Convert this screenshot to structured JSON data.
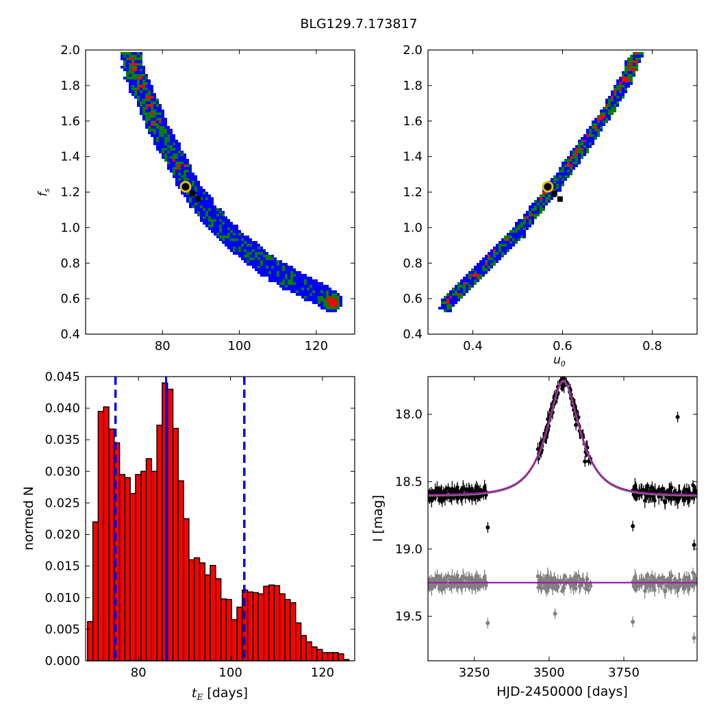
{
  "figure": {
    "title": "BLG129.7.173817"
  },
  "panels": {
    "fs_vs_tE": {
      "ylabel": "f",
      "ylabel_sub": "s",
      "xlim": [
        60,
        130
      ],
      "ylim": [
        0.4,
        2.0
      ],
      "xticks": [
        "80",
        "100",
        "120"
      ],
      "xtick_values": [
        80,
        100,
        120
      ],
      "yticks": [
        "0.4",
        "0.6",
        "0.8",
        "1.0",
        "1.2",
        "1.4",
        "1.6",
        "1.8",
        "2.0"
      ],
      "ytick_values": [
        0.4,
        0.6,
        0.8,
        1.0,
        1.2,
        1.4,
        1.6,
        1.8,
        2.0
      ],
      "band_center": [
        [
          71,
          2.0
        ],
        [
          73,
          1.85
        ],
        [
          76,
          1.7
        ],
        [
          79,
          1.55
        ],
        [
          82,
          1.43
        ],
        [
          85,
          1.31
        ],
        [
          88,
          1.2
        ],
        [
          91,
          1.11
        ],
        [
          95,
          1.01
        ],
        [
          100,
          0.91
        ],
        [
          105,
          0.82
        ],
        [
          110,
          0.75
        ],
        [
          115,
          0.69
        ],
        [
          120,
          0.64
        ],
        [
          124,
          0.59
        ]
      ],
      "best_fit": [
        86,
        1.23
      ]
    },
    "fs_vs_u0": {
      "xlabel": "u",
      "xlabel_sub": "0",
      "xlim": [
        0.3,
        0.9
      ],
      "ylim": [
        0.4,
        2.0
      ],
      "xticks": [
        "0.4",
        "0.6",
        "0.8"
      ],
      "xtick_values": [
        0.4,
        0.6,
        0.8
      ],
      "yticks": [
        "0.4",
        "0.6",
        "0.8",
        "1.0",
        "1.2",
        "1.4",
        "1.6",
        "1.8",
        "2.0"
      ],
      "ytick_values": [
        0.4,
        0.6,
        0.8,
        1.0,
        1.2,
        1.4,
        1.6,
        1.8,
        2.0
      ],
      "band_center": [
        [
          0.335,
          0.57
        ],
        [
          0.4,
          0.73
        ],
        [
          0.45,
          0.86
        ],
        [
          0.5,
          0.99
        ],
        [
          0.55,
          1.15
        ],
        [
          0.6,
          1.31
        ],
        [
          0.65,
          1.49
        ],
        [
          0.7,
          1.67
        ],
        [
          0.735,
          1.82
        ],
        [
          0.765,
          2.0
        ]
      ],
      "best_fit": [
        0.567,
        1.23
      ]
    },
    "histogram": {
      "ylabel": "normed N",
      "xlabel": "t",
      "xlabel_sub": "E",
      "xlabel_suffix": " [days]",
      "xlim": [
        68.5,
        127
      ],
      "ylim": [
        0,
        0.045
      ],
      "xticks": [
        "80",
        "100",
        "120"
      ],
      "xtick_values": [
        80,
        100,
        120
      ],
      "yticks": [
        "0.000",
        "0.005",
        "0.010",
        "0.015",
        "0.020",
        "0.025",
        "0.030",
        "0.035",
        "0.040",
        "0.045"
      ],
      "ytick_values": [
        0,
        0.005,
        0.01,
        0.015,
        0.02,
        0.025,
        0.03,
        0.035,
        0.04,
        0.045
      ],
      "median": 86,
      "bounds": [
        75,
        103
      ]
    },
    "lightcurve": {
      "ylabel": "I [mag]",
      "xlabel": "HJD-2450000 [days]",
      "xlim": [
        3095,
        3995
      ],
      "ylim": [
        19.83,
        17.72
      ],
      "xticks": [
        "3250",
        "3500",
        "3750"
      ],
      "xtick_values": [
        3250,
        3500,
        3750
      ],
      "yticks": [
        "18.0",
        "18.5",
        "19.0",
        "19.5"
      ],
      "ytick_values": [
        18.0,
        18.5,
        19.0,
        19.5
      ],
      "model": {
        "t0": 3548,
        "tE": 86,
        "u0": 0.567,
        "fs": 1.23,
        "baseline_mag": 18.6
      },
      "residual_offset": 19.25,
      "segments": [
        [
          3095,
          3295
        ],
        [
          3460,
          3640
        ],
        [
          3780,
          3995
        ]
      ]
    }
  },
  "chart_data": [
    {
      "type": "heatmap",
      "xlabel": "",
      "ylabel": "f_s",
      "xlim": [
        60,
        130
      ],
      "ylim": [
        0.4,
        2.0
      ],
      "series": [
        {
          "name": "",
          "values": [
            [
              71,
              2.0
            ],
            [
              76,
              1.7
            ],
            [
              82,
              1.43
            ],
            [
              88,
              1.2
            ],
            [
              95,
              1.01
            ],
            [
              105,
              0.82
            ],
            [
              115,
              0.69
            ],
            [
              124,
              0.59
            ]
          ]
        }
      ],
      "best_fit": [
        86,
        1.23
      ]
    },
    {
      "type": "heatmap",
      "xlabel": "u_0",
      "ylabel": "",
      "xlim": [
        0.3,
        0.9
      ],
      "ylim": [
        0.4,
        2.0
      ],
      "series": [
        {
          "name": "",
          "values": [
            [
              0.335,
              0.57
            ],
            [
              0.45,
              0.86
            ],
            [
              0.55,
              1.15
            ],
            [
              0.65,
              1.49
            ],
            [
              0.765,
              2.0
            ]
          ]
        }
      ],
      "best_fit": [
        0.567,
        1.23
      ]
    },
    {
      "type": "bar",
      "xlabel": "t_E [days]",
      "ylabel": "normed N",
      "xlim": [
        68.5,
        127
      ],
      "ylim": [
        0,
        0.045
      ],
      "bin_width": 1.16,
      "x": [
        69.5,
        70.66,
        71.82,
        72.98,
        74.14,
        75.3,
        76.46,
        77.62,
        78.78,
        79.94,
        81.1,
        82.26,
        83.42,
        84.58,
        85.74,
        86.9,
        88.06,
        89.22,
        90.38,
        91.54,
        92.7,
        93.86,
        95.02,
        96.18,
        97.34,
        98.5,
        99.66,
        100.82,
        101.98,
        103.14,
        104.3,
        105.46,
        106.62,
        107.78,
        108.94,
        110.1,
        111.26,
        112.42,
        113.58,
        114.74,
        115.9,
        117.06,
        118.22,
        119.38,
        120.54,
        121.7,
        122.86,
        124.02,
        125.18
      ],
      "values": [
        0.0062,
        0.022,
        0.0395,
        0.0402,
        0.0367,
        0.0345,
        0.0295,
        0.029,
        0.0265,
        0.0295,
        0.03,
        0.032,
        0.03,
        0.0373,
        0.044,
        0.043,
        0.0368,
        0.0285,
        0.0225,
        0.016,
        0.0163,
        0.0155,
        0.0136,
        0.0151,
        0.013,
        0.0098,
        0.0097,
        0.0065,
        0.0085,
        0.0112,
        0.0109,
        0.0108,
        0.0106,
        0.0118,
        0.012,
        0.0119,
        0.0106,
        0.0097,
        0.0092,
        0.006,
        0.004,
        0.003,
        0.0022,
        0.0018,
        0.0013,
        0.0013,
        0.0013,
        0.0011,
        0.0002
      ],
      "vlines": {
        "median": 86,
        "lower": 75,
        "upper": 103
      }
    },
    {
      "type": "scatter",
      "xlabel": "HJD-2450000 [days]",
      "ylabel": "I [mag]",
      "xlim": [
        3095,
        3995
      ],
      "ylim": [
        19.83,
        17.72
      ],
      "series": [
        {
          "name": "",
          "values": [
            [
              3545,
              17.79
            ],
            [
              3548,
              17.77
            ],
            [
              3590,
              18.08
            ],
            [
              3620,
              18.35
            ],
            [
              3930,
              18.02
            ],
            [
              3295,
              18.84
            ],
            [
              3780,
              18.83
            ],
            [
              3985,
              18.97
            ]
          ]
        },
        {
          "name": "",
          "values": [
            [
              3295,
              19.55
            ],
            [
              3780,
              19.54
            ],
            [
              3520,
              19.48
            ],
            [
              3985,
              19.66
            ]
          ]
        }
      ]
    }
  ]
}
